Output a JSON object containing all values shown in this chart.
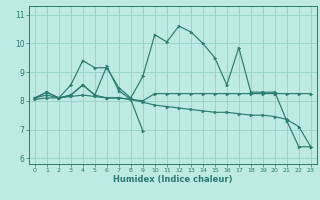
{
  "xlabel": "Humidex (Indice chaleur)",
  "bg_color": "#beeae4",
  "grid_color": "#99d4cc",
  "line_color": "#2a7a70",
  "xlim": [
    -0.5,
    23.5
  ],
  "ylim": [
    5.8,
    11.3
  ],
  "xticks": [
    0,
    1,
    2,
    3,
    4,
    5,
    6,
    7,
    8,
    9,
    10,
    11,
    12,
    13,
    14,
    15,
    16,
    17,
    18,
    19,
    20,
    21,
    22,
    23
  ],
  "yticks": [
    6,
    7,
    8,
    9,
    10,
    11
  ],
  "line1_x": [
    0,
    1,
    2,
    3,
    4,
    5,
    6,
    7,
    8,
    9,
    10,
    11,
    12,
    13,
    14,
    15,
    16,
    17,
    18,
    19,
    20,
    21,
    22,
    23
  ],
  "line1_y": [
    8.1,
    8.3,
    8.1,
    8.55,
    9.4,
    9.15,
    9.15,
    8.45,
    8.1,
    8.85,
    10.3,
    10.05,
    10.6,
    10.4,
    10.0,
    9.5,
    8.55,
    9.85,
    8.3,
    8.3,
    8.3,
    7.3,
    6.4,
    6.4
  ],
  "line2_x": [
    0,
    1,
    2,
    3,
    4,
    5,
    6,
    7,
    8,
    9,
    10,
    11,
    12,
    13,
    14,
    15,
    16,
    17,
    18,
    19,
    20,
    21,
    22,
    23
  ],
  "line2_y": [
    8.1,
    8.2,
    8.1,
    8.2,
    8.55,
    8.2,
    8.1,
    8.1,
    8.05,
    8.0,
    8.25,
    8.25,
    8.25,
    8.25,
    8.25,
    8.25,
    8.25,
    8.25,
    8.25,
    8.25,
    8.25,
    8.25,
    8.25,
    8.25
  ],
  "line3_x": [
    0,
    1,
    2,
    3,
    4,
    5,
    6,
    7,
    8,
    9,
    10,
    11,
    12,
    13,
    14,
    15,
    16,
    17,
    18,
    19,
    20,
    21,
    22,
    23
  ],
  "line3_y": [
    8.05,
    8.1,
    8.1,
    8.15,
    8.2,
    8.15,
    8.1,
    8.1,
    8.05,
    7.95,
    7.85,
    7.8,
    7.75,
    7.7,
    7.65,
    7.6,
    7.6,
    7.55,
    7.5,
    7.5,
    7.45,
    7.35,
    7.1,
    6.4
  ],
  "line4_x": [
    0,
    1,
    2,
    3,
    4,
    5,
    6,
    7,
    8,
    9
  ],
  "line4_y": [
    8.1,
    8.3,
    8.1,
    8.2,
    8.55,
    8.2,
    9.2,
    8.35,
    8.05,
    6.95
  ]
}
